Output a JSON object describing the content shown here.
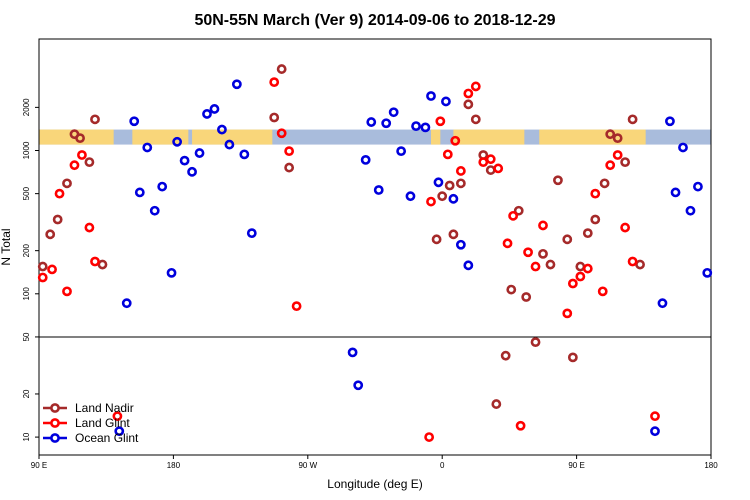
{
  "chart_data": {
    "type": "scatter",
    "title": "50N-55N March (Ver 9)   2014-09-06 to 2018-12-29",
    "xlabel": "Longitude (deg E)",
    "ylabel": "N Total",
    "x_scale": "linear",
    "y_scale": "log",
    "xlim": [
      0,
      360
    ],
    "ylim": [
      7.5,
      6000
    ],
    "x_ticks": [
      {
        "value": 0,
        "label": "90 E"
      },
      {
        "value": 72,
        "label": "180"
      },
      {
        "value": 144,
        "label": "90 W"
      },
      {
        "value": 216,
        "label": "0"
      },
      {
        "value": 288,
        "label": "90 E"
      },
      {
        "value": 360,
        "label": "180"
      }
    ],
    "y_ticks": [
      {
        "value": 10,
        "label": "10"
      },
      {
        "value": 20,
        "label": "20"
      },
      {
        "value": 50,
        "label": "50"
      },
      {
        "value": 100,
        "label": "100"
      },
      {
        "value": 200,
        "label": "200"
      },
      {
        "value": 500,
        "label": "500"
      },
      {
        "value": 1000,
        "label": "1000"
      },
      {
        "value": 2000,
        "label": "2000"
      }
    ],
    "reference_line": {
      "y": 50
    },
    "land_band": {
      "y_range": [
        1100,
        1400
      ],
      "ocean_color": "#a9bcdc",
      "land_color": "#f9d67a",
      "land_segments": [
        [
          0,
          40
        ],
        [
          50,
          80
        ],
        [
          82,
          125
        ],
        [
          210,
          215
        ],
        [
          222,
          260
        ],
        [
          268,
          325
        ]
      ]
    },
    "legend": {
      "position": "bottom-left"
    },
    "series": [
      {
        "name": "Land Nadir",
        "color": "#a52a2a",
        "points": [
          {
            "x": 2,
            "y": 155
          },
          {
            "x": 6,
            "y": 260
          },
          {
            "x": 10,
            "y": 330
          },
          {
            "x": 15,
            "y": 590
          },
          {
            "x": 19,
            "y": 1300
          },
          {
            "x": 22,
            "y": 1220
          },
          {
            "x": 27,
            "y": 830
          },
          {
            "x": 30,
            "y": 1650
          },
          {
            "x": 34,
            "y": 160
          },
          {
            "x": 126,
            "y": 1700
          },
          {
            "x": 130,
            "y": 3700
          },
          {
            "x": 134,
            "y": 760
          },
          {
            "x": 213,
            "y": 240
          },
          {
            "x": 216,
            "y": 480
          },
          {
            "x": 220,
            "y": 570
          },
          {
            "x": 222,
            "y": 260
          },
          {
            "x": 226,
            "y": 590
          },
          {
            "x": 230,
            "y": 2100
          },
          {
            "x": 234,
            "y": 1650
          },
          {
            "x": 238,
            "y": 930
          },
          {
            "x": 242,
            "y": 730
          },
          {
            "x": 245,
            "y": 17
          },
          {
            "x": 250,
            "y": 37
          },
          {
            "x": 253,
            "y": 107
          },
          {
            "x": 257,
            "y": 380
          },
          {
            "x": 261,
            "y": 95
          },
          {
            "x": 266,
            "y": 46
          },
          {
            "x": 270,
            "y": 190
          },
          {
            "x": 274,
            "y": 160
          },
          {
            "x": 278,
            "y": 620
          },
          {
            "x": 283,
            "y": 240
          },
          {
            "x": 286,
            "y": 36
          },
          {
            "x": 290,
            "y": 155
          },
          {
            "x": 294,
            "y": 265
          },
          {
            "x": 298,
            "y": 330
          },
          {
            "x": 303,
            "y": 590
          },
          {
            "x": 306,
            "y": 1300
          },
          {
            "x": 310,
            "y": 1220
          },
          {
            "x": 314,
            "y": 830
          },
          {
            "x": 318,
            "y": 1650
          },
          {
            "x": 322,
            "y": 160
          }
        ]
      },
      {
        "name": "Land Glint",
        "color": "#ff0000",
        "points": [
          {
            "x": 2,
            "y": 130
          },
          {
            "x": 7,
            "y": 148
          },
          {
            "x": 11,
            "y": 500
          },
          {
            "x": 15,
            "y": 104
          },
          {
            "x": 19,
            "y": 790
          },
          {
            "x": 23,
            "y": 930
          },
          {
            "x": 27,
            "y": 290
          },
          {
            "x": 30,
            "y": 168
          },
          {
            "x": 42,
            "y": 14
          },
          {
            "x": 126,
            "y": 3000
          },
          {
            "x": 130,
            "y": 1320
          },
          {
            "x": 134,
            "y": 990
          },
          {
            "x": 138,
            "y": 82
          },
          {
            "x": 209,
            "y": 10
          },
          {
            "x": 210,
            "y": 440
          },
          {
            "x": 215,
            "y": 1600
          },
          {
            "x": 219,
            "y": 940
          },
          {
            "x": 223,
            "y": 1170
          },
          {
            "x": 226,
            "y": 720
          },
          {
            "x": 230,
            "y": 2500
          },
          {
            "x": 234,
            "y": 2800
          },
          {
            "x": 238,
            "y": 830
          },
          {
            "x": 242,
            "y": 870
          },
          {
            "x": 246,
            "y": 750
          },
          {
            "x": 251,
            "y": 225
          },
          {
            "x": 254,
            "y": 350
          },
          {
            "x": 258,
            "y": 12
          },
          {
            "x": 262,
            "y": 195
          },
          {
            "x": 266,
            "y": 155
          },
          {
            "x": 270,
            "y": 300
          },
          {
            "x": 283,
            "y": 73
          },
          {
            "x": 286,
            "y": 118
          },
          {
            "x": 290,
            "y": 132
          },
          {
            "x": 294,
            "y": 150
          },
          {
            "x": 298,
            "y": 500
          },
          {
            "x": 302,
            "y": 104
          },
          {
            "x": 306,
            "y": 790
          },
          {
            "x": 310,
            "y": 930
          },
          {
            "x": 314,
            "y": 290
          },
          {
            "x": 318,
            "y": 168
          },
          {
            "x": 330,
            "y": 14
          }
        ]
      },
      {
        "name": "Ocean Glint",
        "color": "#0000dd",
        "points": [
          {
            "x": 43,
            "y": 11
          },
          {
            "x": 47,
            "y": 86
          },
          {
            "x": 51,
            "y": 1600
          },
          {
            "x": 54,
            "y": 510
          },
          {
            "x": 58,
            "y": 1050
          },
          {
            "x": 62,
            "y": 380
          },
          {
            "x": 66,
            "y": 560
          },
          {
            "x": 71,
            "y": 140
          },
          {
            "x": 74,
            "y": 1150
          },
          {
            "x": 78,
            "y": 850
          },
          {
            "x": 82,
            "y": 710
          },
          {
            "x": 86,
            "y": 960
          },
          {
            "x": 90,
            "y": 1800
          },
          {
            "x": 94,
            "y": 1950
          },
          {
            "x": 98,
            "y": 1400
          },
          {
            "x": 102,
            "y": 1100
          },
          {
            "x": 106,
            "y": 2900
          },
          {
            "x": 110,
            "y": 940
          },
          {
            "x": 114,
            "y": 265
          },
          {
            "x": 168,
            "y": 39
          },
          {
            "x": 171,
            "y": 23
          },
          {
            "x": 175,
            "y": 860
          },
          {
            "x": 178,
            "y": 1580
          },
          {
            "x": 182,
            "y": 530
          },
          {
            "x": 186,
            "y": 1550
          },
          {
            "x": 190,
            "y": 1850
          },
          {
            "x": 194,
            "y": 990
          },
          {
            "x": 199,
            "y": 480
          },
          {
            "x": 202,
            "y": 1480
          },
          {
            "x": 207,
            "y": 1450
          },
          {
            "x": 210,
            "y": 2400
          },
          {
            "x": 214,
            "y": 600
          },
          {
            "x": 218,
            "y": 2200
          },
          {
            "x": 222,
            "y": 460
          },
          {
            "x": 226,
            "y": 220
          },
          {
            "x": 230,
            "y": 158
          },
          {
            "x": 330,
            "y": 11
          },
          {
            "x": 334,
            "y": 86
          },
          {
            "x": 338,
            "y": 1600
          },
          {
            "x": 341,
            "y": 510
          },
          {
            "x": 345,
            "y": 1050
          },
          {
            "x": 349,
            "y": 380
          },
          {
            "x": 353,
            "y": 560
          },
          {
            "x": 358,
            "y": 140
          }
        ]
      }
    ]
  }
}
